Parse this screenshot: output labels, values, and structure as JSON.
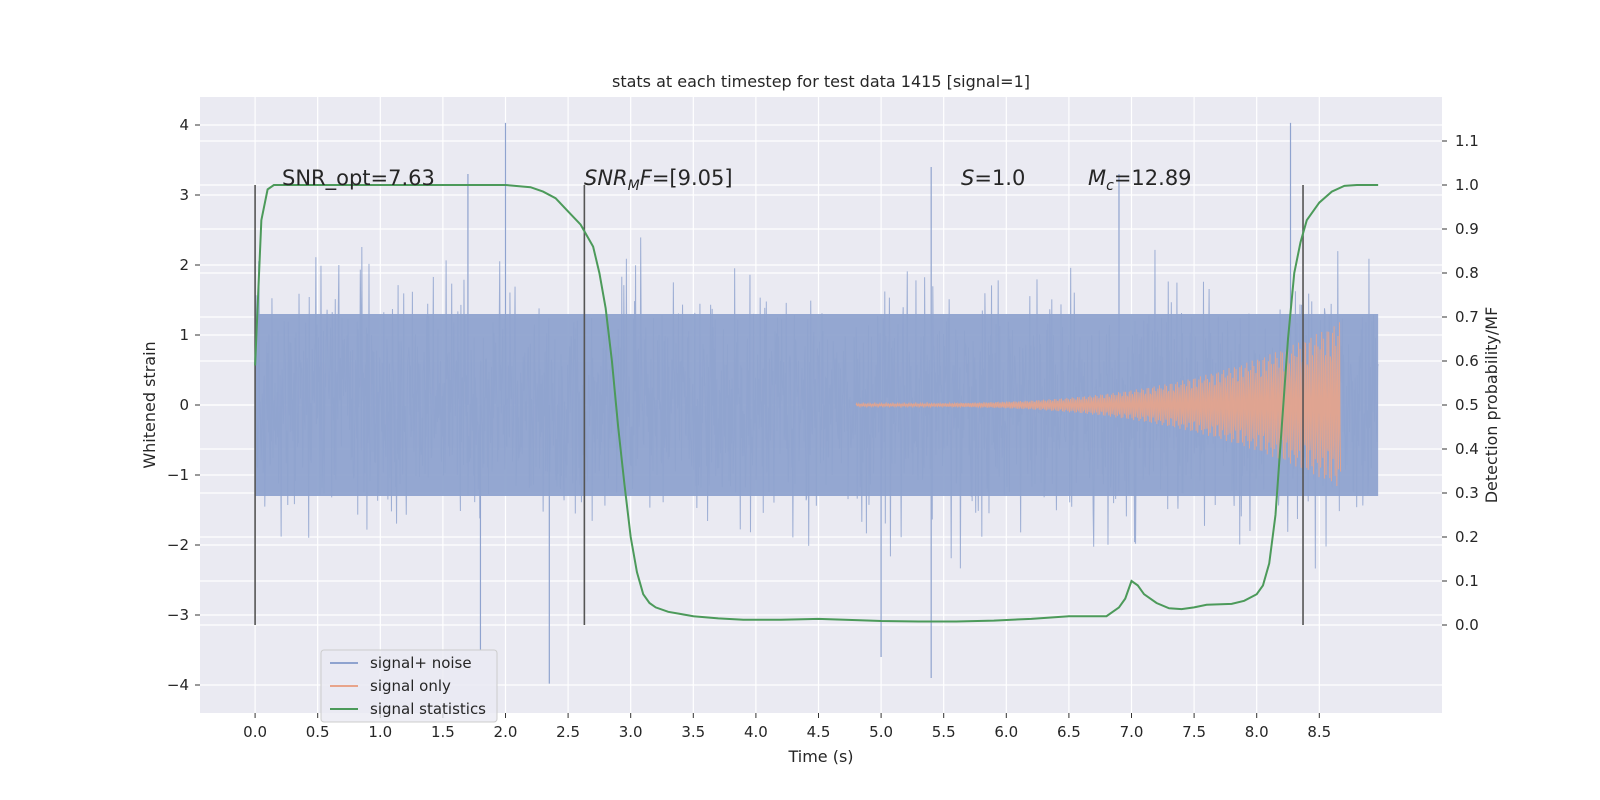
{
  "chart_data": {
    "type": "line",
    "title": "stats at each timestep for test data 1415 [signal=1]",
    "xlabel": "Time (s)",
    "ylabel_left": "Whitened strain",
    "ylabel_right": "Detection probability/MF",
    "xlim": [
      -0.44,
      9.48
    ],
    "ylim_left": [
      -4.4,
      4.4
    ],
    "ylim_right": [
      -0.2,
      1.2
    ],
    "x_ticks": [
      "0.0",
      "0.5",
      "1.0",
      "1.5",
      "2.0",
      "2.5",
      "3.0",
      "3.5",
      "4.0",
      "4.5",
      "5.0",
      "5.5",
      "6.0",
      "6.5",
      "7.0",
      "7.5",
      "8.0",
      "8.5"
    ],
    "y_left_ticks": [
      "4",
      "3",
      "2",
      "1",
      "0",
      "−1",
      "−2",
      "−3",
      "−4"
    ],
    "y_right_ticks": [
      "1.1",
      "1.0",
      "0.9",
      "0.8",
      "0.7",
      "0.6",
      "0.5",
      "0.4",
      "0.3",
      "0.2",
      "0.1",
      "0.0"
    ],
    "grid": true,
    "legend_position": "lower-left",
    "vertical_markers_s": [
      0.0,
      2.63,
      8.37
    ],
    "annotations": [
      "SNR_opt=7.63",
      "[9.05]",
      "=1.0",
      "=12.89"
    ],
    "annotation_symbols": {
      "mf_main": "SNR",
      "mf_sub": "M",
      "mf_tail": "F=",
      "s_main": "S",
      "mc_main": "M",
      "mc_sub": "c"
    },
    "series": [
      {
        "name": "signal+ noise",
        "color": "#8fa3cf",
        "description": "noise band",
        "x_range": [
          0.0,
          8.97
        ],
        "core_amplitude": 1.3,
        "max": 4.03,
        "min": -3.98
      },
      {
        "name": "signal only",
        "color": "#e8a48a",
        "description": "chirp",
        "x_start": 4.8,
        "x_end": 8.67,
        "peak_amplitude": 1.3
      },
      {
        "name": "signal statistics",
        "color": "#4c9a5a",
        "x": [
          0.0,
          0.05,
          0.1,
          0.15,
          0.2,
          0.3,
          0.5,
          1.0,
          1.5,
          2.0,
          2.2,
          2.3,
          2.4,
          2.5,
          2.6,
          2.7,
          2.75,
          2.8,
          2.85,
          2.9,
          2.95,
          3.0,
          3.05,
          3.1,
          3.15,
          3.2,
          3.3,
          3.4,
          3.5,
          3.7,
          3.9,
          4.2,
          4.5,
          4.8,
          5.0,
          5.3,
          5.6,
          5.9,
          6.2,
          6.5,
          6.8,
          6.9,
          6.95,
          7.0,
          7.05,
          7.1,
          7.2,
          7.3,
          7.4,
          7.5,
          7.6,
          7.8,
          7.9,
          8.0,
          8.05,
          8.1,
          8.15,
          8.2,
          8.25,
          8.3,
          8.35,
          8.4,
          8.5,
          8.6,
          8.7,
          8.8,
          8.97
        ],
        "y": [
          0.59,
          0.92,
          0.99,
          1.0,
          1.0,
          1.0,
          1.0,
          1.0,
          1.0,
          1.0,
          0.995,
          0.985,
          0.97,
          0.94,
          0.91,
          0.86,
          0.8,
          0.72,
          0.6,
          0.45,
          0.32,
          0.2,
          0.12,
          0.07,
          0.05,
          0.04,
          0.03,
          0.025,
          0.02,
          0.015,
          0.012,
          0.012,
          0.014,
          0.011,
          0.009,
          0.008,
          0.008,
          0.01,
          0.014,
          0.02,
          0.02,
          0.04,
          0.06,
          0.1,
          0.09,
          0.07,
          0.05,
          0.038,
          0.036,
          0.04,
          0.046,
          0.048,
          0.055,
          0.07,
          0.09,
          0.14,
          0.25,
          0.45,
          0.65,
          0.8,
          0.87,
          0.92,
          0.96,
          0.985,
          0.998,
          1.0,
          1.0
        ]
      }
    ]
  }
}
